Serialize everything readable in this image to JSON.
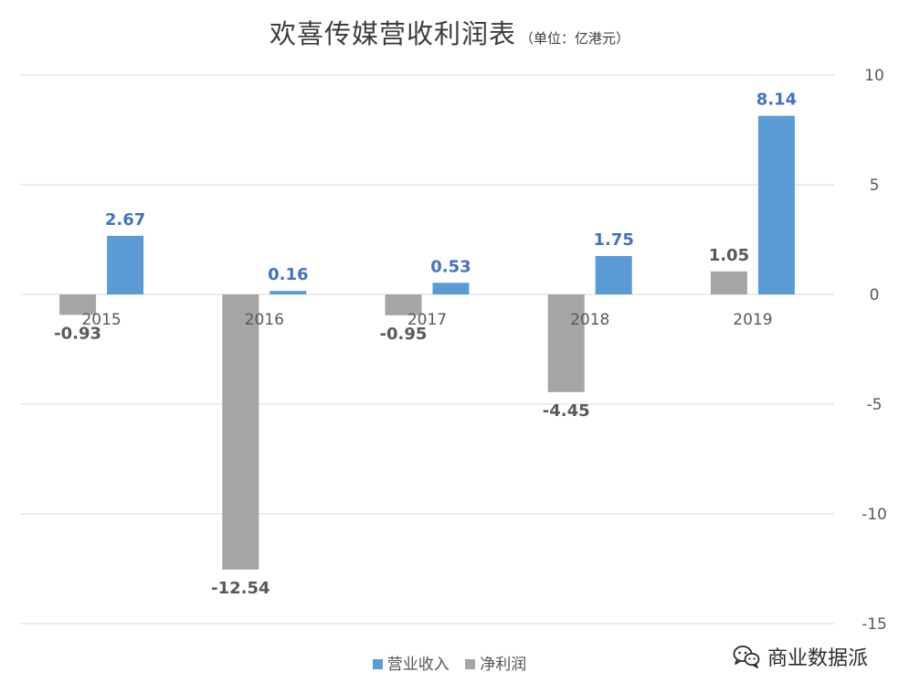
{
  "header": {
    "title": "欢喜传媒营收利润表",
    "subtitle": "（单位：亿港元）"
  },
  "chart_data": {
    "type": "bar",
    "title": "欢喜传媒营收利润表",
    "subtitle": "（单位：亿港元）",
    "categories": [
      "2015",
      "2016",
      "2017",
      "2018",
      "2019"
    ],
    "series": [
      {
        "name": "净利润",
        "color": "#a5a5a5",
        "label_color": "#595959",
        "values": [
          -0.93,
          -12.54,
          -0.95,
          -4.45,
          1.05
        ]
      },
      {
        "name": "营业收入",
        "color": "#5b9bd5",
        "label_color": "#4472c4",
        "values": [
          2.67,
          0.16,
          0.53,
          1.75,
          8.14
        ]
      }
    ],
    "data_labels": [
      [
        "-0.93",
        "-12.54",
        "-0.95",
        "-4.45",
        "1.05"
      ],
      [
        "2.67",
        "0.16",
        "0.53",
        "1.75",
        "8.14"
      ]
    ],
    "ylim": [
      -15,
      10
    ],
    "yticks": [
      10,
      5,
      0,
      -5,
      -10,
      -15
    ],
    "ytick_labels": [
      "10",
      "5",
      "0",
      "-5",
      "-10",
      "-15"
    ],
    "y_axis_side": "right",
    "grid": true,
    "legend_position": "bottom"
  },
  "legend": {
    "items": [
      {
        "label": "营业收入",
        "color": "#5b9bd5"
      },
      {
        "label": "净利润",
        "color": "#a5a5a5"
      }
    ]
  },
  "watermark": {
    "text": "商业数据派",
    "icon": "wechat-icon"
  }
}
